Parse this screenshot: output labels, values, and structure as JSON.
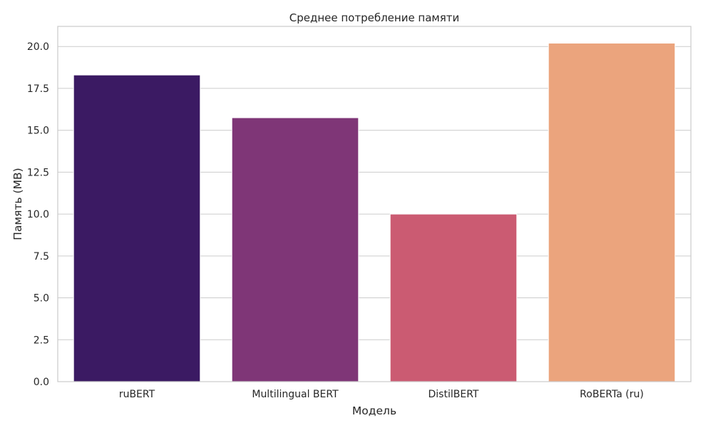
{
  "chart_data": {
    "type": "bar",
    "title": "Среднее потребление памяти",
    "xlabel": "Модель",
    "ylabel": "Память (MB)",
    "categories": [
      "ruBERT",
      "Multilingual BERT",
      "DistilBERT",
      "RoBERTa (ru)"
    ],
    "values": [
      18.3,
      15.75,
      10.0,
      20.2
    ],
    "colors": [
      "#3b1a63",
      "#7f3677",
      "#cb5b72",
      "#eba47d"
    ],
    "ylim": [
      0,
      21.2
    ],
    "yticks": [
      0,
      2.5,
      5,
      7.5,
      10,
      12.5,
      15,
      17.5,
      20
    ],
    "ytick_labels": [
      "0.0",
      "2.5",
      "5.0",
      "7.5",
      "10.0",
      "12.5",
      "15.0",
      "17.5",
      "20.0"
    ],
    "grid": "horizontal",
    "legend": "none",
    "style": {
      "background": "#ffffff",
      "grid_color": "#cccccc",
      "spine_color": "#cccccc",
      "text_color": "#262626"
    }
  }
}
